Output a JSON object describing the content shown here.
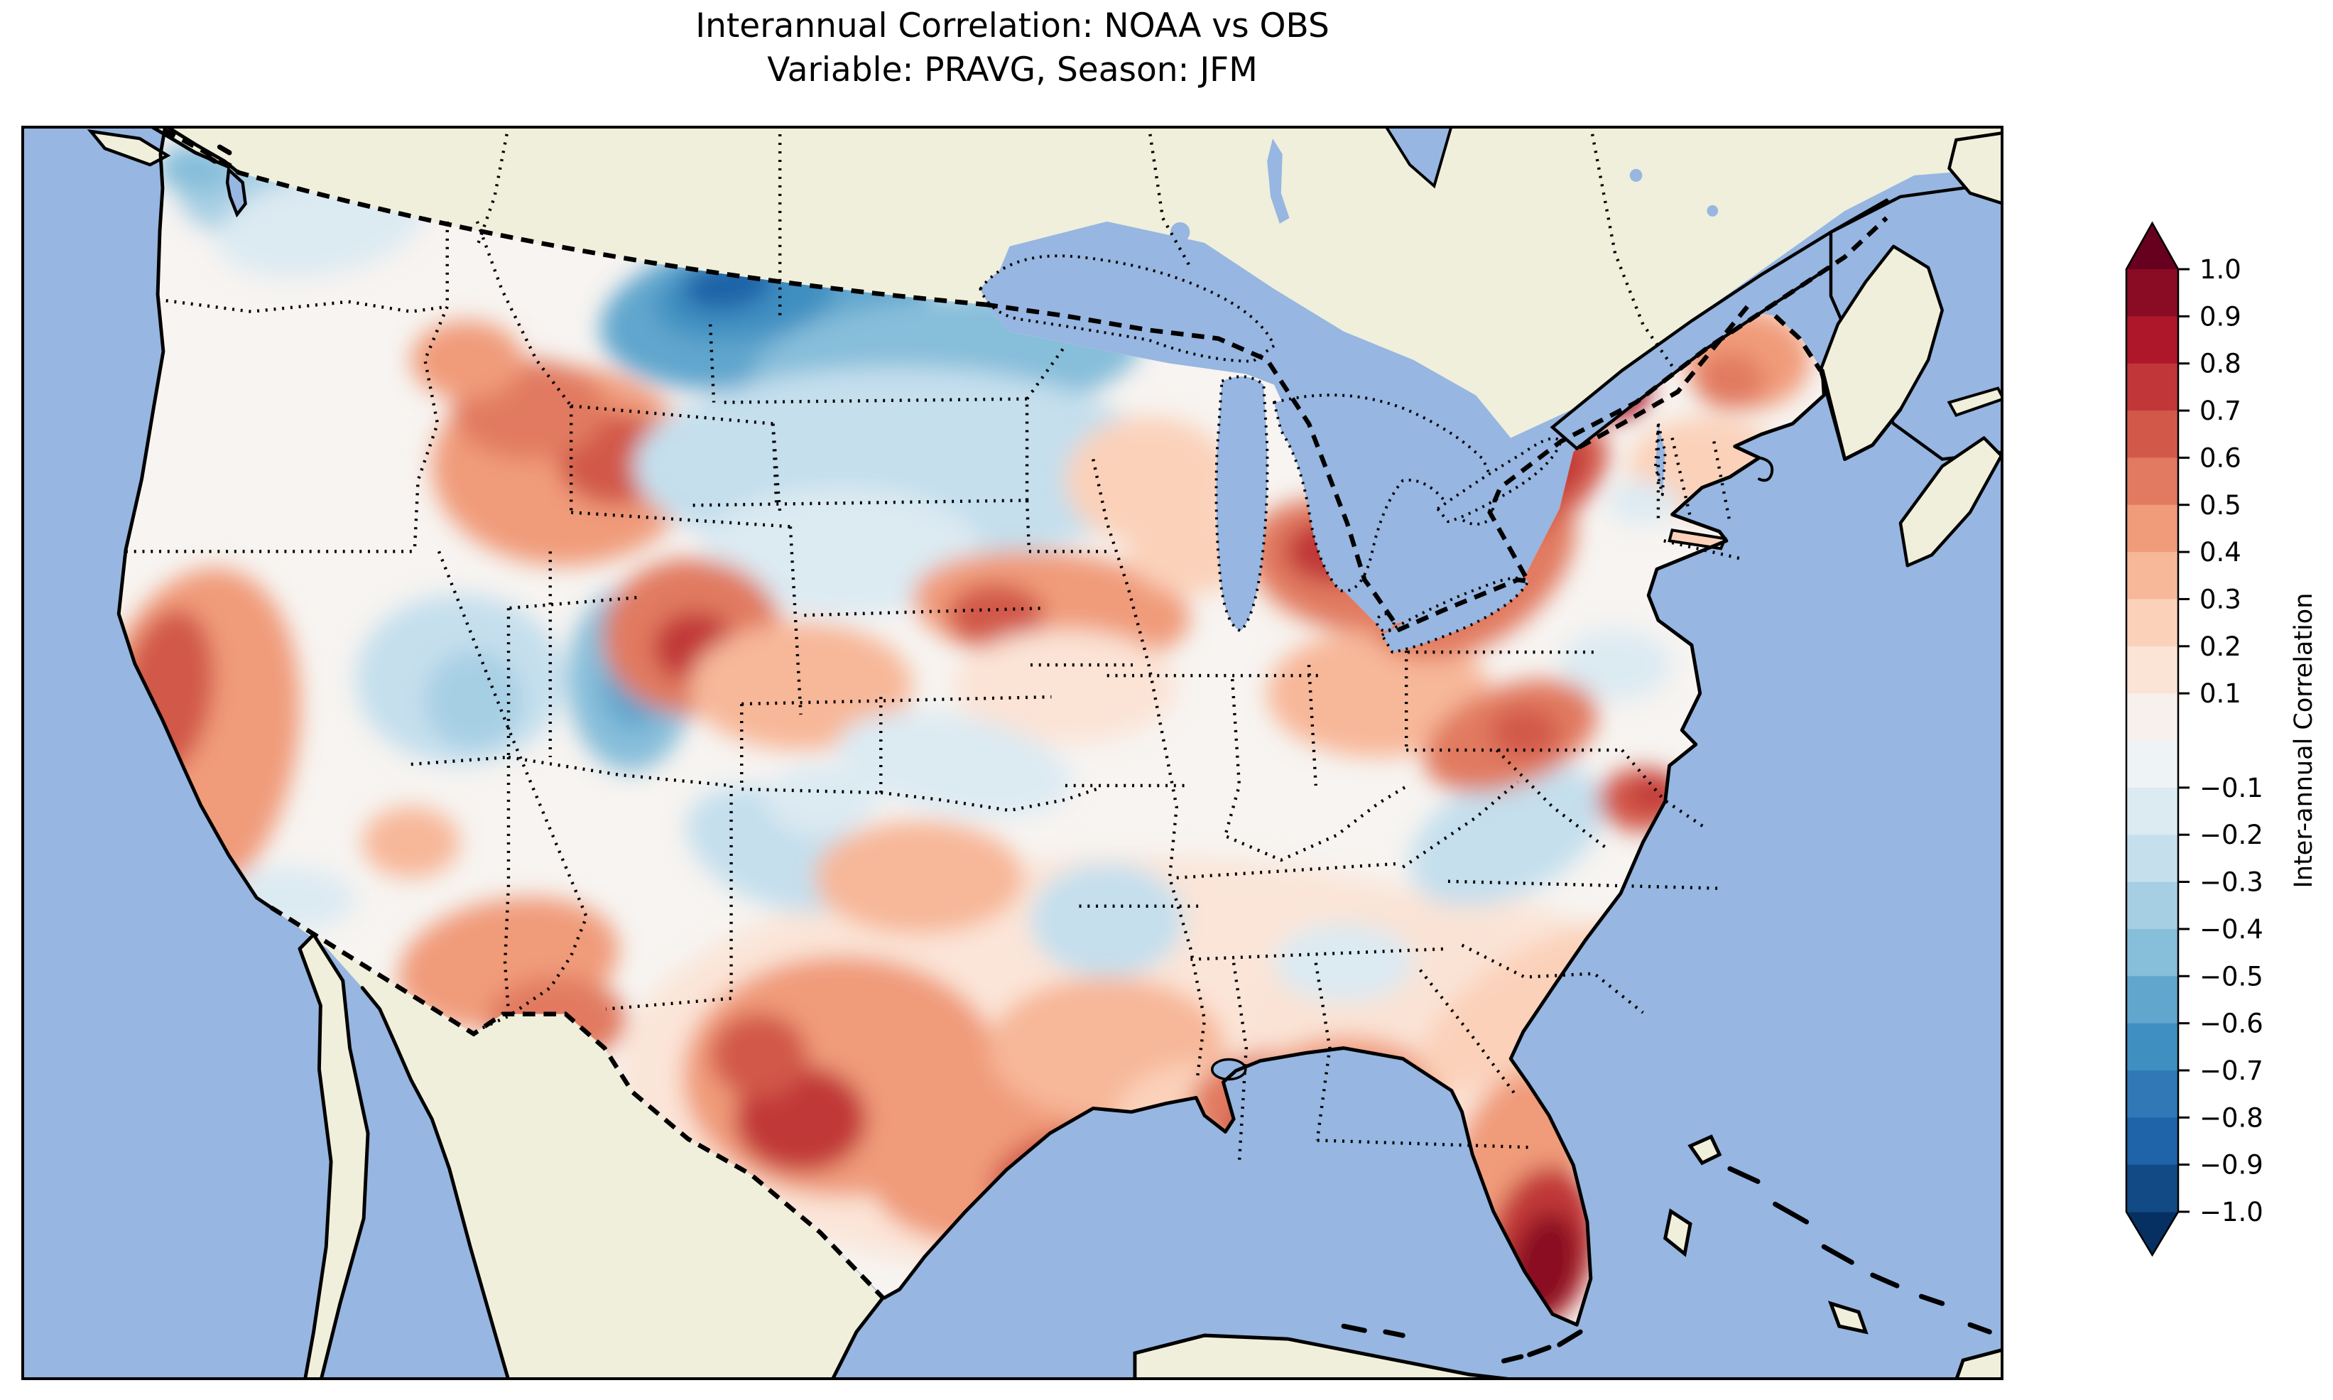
{
  "figure": {
    "title_line1": "Interannual Correlation: NOAA vs OBS",
    "title_line2": "Variable: PRAVG, Season: JFM"
  },
  "colorbar": {
    "label": "Inter-annual Correlation",
    "tick_labels": [
      "1.0",
      "0.9",
      "0.8",
      "0.7",
      "0.6",
      "0.5",
      "0.4",
      "0.3",
      "0.2",
      "0.1",
      "−0.1",
      "−0.2",
      "−0.3",
      "−0.4",
      "−0.5",
      "−0.6",
      "−0.7",
      "−0.8",
      "−0.9",
      "−1.0"
    ],
    "tick_values": [
      1.0,
      0.9,
      0.8,
      0.7,
      0.6,
      0.5,
      0.4,
      0.3,
      0.2,
      0.1,
      -0.1,
      -0.2,
      -0.3,
      -0.4,
      -0.5,
      -0.6,
      -0.7,
      -0.8,
      -0.9,
      -1.0
    ],
    "level_min": -1.0,
    "level_max": 1.0,
    "level_step": 0.1,
    "extend": "both",
    "over_color": "#67001F",
    "under_color": "#053061",
    "cell_colors_top_to_bottom": [
      "#8A0B24",
      "#AE162A",
      "#C13739",
      "#D25949",
      "#E17A61",
      "#F09B7A",
      "#F7B799",
      "#FBD1BA",
      "#FBE3D5",
      "#F8F0EC",
      "#EEF3F5",
      "#DCEAF2",
      "#C5DFED",
      "#A7CFE4",
      "#87BEDA",
      "#61A6CD",
      "#408FC1",
      "#3079B6",
      "#1F63A8",
      "#124A85"
    ]
  },
  "map": {
    "ocean_color": "#97B6E1",
    "land_color": "#EFEFDB",
    "field_base_color": "#F7F4F1",
    "coast_color": "#000000",
    "frame_color": "#000000"
  },
  "chart_data": {
    "type": "heatmap",
    "title": "Interannual Correlation: NOAA vs OBS",
    "subtitle": "Variable: PRAVG, Season: JFM",
    "colorbar_label": "Inter-annual Correlation",
    "colormap": "RdBu_r, discrete filled contours",
    "value_range": [
      -1.0,
      1.0
    ],
    "contour_interval": 0.1,
    "extend": "both",
    "region_shown": "Contiguous United States with surrounding North America (Canada/Mexico shown as no-data land)",
    "legend_position": "right vertical colorbar with triangular over/under arrows",
    "regions": [
      {
        "region": "Puget Sound / NW Washington",
        "value": -0.25
      },
      {
        "region": "Washington-Oregon interior",
        "value": 0.05
      },
      {
        "region": "SW Oregon / N California coast",
        "value": 0.55
      },
      {
        "region": "Southern California coast",
        "value": -0.15
      },
      {
        "region": "Great Basin (Nevada)",
        "value": -0.2
      },
      {
        "region": "Eastern Utah / W Colorado",
        "value": -0.45
      },
      {
        "region": "Idaho / W Montana mountains",
        "value": 0.5
      },
      {
        "region": "Montana-North Dakota border (strongest negative)",
        "value": -0.75
      },
      {
        "region": "North Dakota to N Minnesota",
        "value": -0.4
      },
      {
        "region": "South Dakota / Nebraska plains",
        "value": -0.15
      },
      {
        "region": "Wyoming / Colorado Front Range",
        "value": 0.55
      },
      {
        "region": "S Minnesota / N Iowa band",
        "value": 0.45
      },
      {
        "region": "Kansas / Oklahoma",
        "value": 0.05
      },
      {
        "region": "E New Mexico / Texas panhandle",
        "value": -0.25
      },
      {
        "region": "West Texas (Big Bend)",
        "value": 0.6
      },
      {
        "region": "South and coastal Texas",
        "value": 0.65
      },
      {
        "region": "Louisiana",
        "value": 0.55
      },
      {
        "region": "Mississippi-Alabama gulf coast",
        "value": 0.65
      },
      {
        "region": "Central Georgia",
        "value": 0.55
      },
      {
        "region": "Tennessee Valley",
        "value": 0.05
      },
      {
        "region": "Ozarks (S Missouri / Arkansas)",
        "value": -0.25
      },
      {
        "region": "Wisconsin / lower Michigan",
        "value": 0.25
      },
      {
        "region": "Ohio Valley south of Lake Erie",
        "value": 0.6
      },
      {
        "region": "Pennsylvania / upstate New York",
        "value": 0.7
      },
      {
        "region": "Adirondacks (NE maximum)",
        "value": 0.75
      },
      {
        "region": "New England",
        "value": 0.2
      },
      {
        "region": "Virginia / Mid-Atlantic",
        "value": -0.1
      },
      {
        "region": "Carolinas piedmont",
        "value": -0.2
      },
      {
        "region": "Cape Hatteras coast",
        "value": 0.65
      },
      {
        "region": "Georgia-Carolina coast",
        "value": 0.35
      },
      {
        "region": "North Florida",
        "value": 0.1
      },
      {
        "region": "South Florida (overall maximum)",
        "value": 0.85
      },
      {
        "region": "Northern Maine",
        "value": 0.45
      }
    ]
  }
}
